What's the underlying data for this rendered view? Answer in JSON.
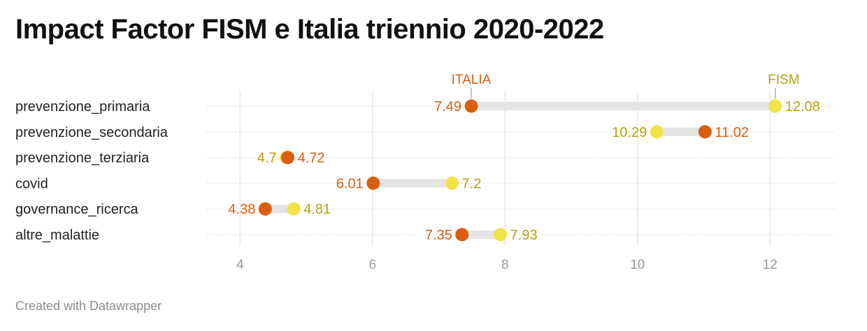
{
  "title": "Impact Factor FISM e Italia triennio 2020-2022",
  "footer": "Created with Datawrapper",
  "chart_data": {
    "type": "dot-range",
    "xlim": [
      3.5,
      13
    ],
    "xticks": [
      4,
      6,
      8,
      10,
      12
    ],
    "grid": true,
    "series": [
      {
        "name": "ITALIA",
        "color": "#d95f0e"
      },
      {
        "name": "FISM",
        "color": "#f2e247",
        "label_color": "#b3a20a"
      }
    ],
    "rows": [
      {
        "label": "prevenzione_primaria",
        "italia": 7.49,
        "fism": 12.08,
        "italia_label": "7.49",
        "fism_label": "12.08"
      },
      {
        "label": "prevenzione_secondaria",
        "italia": 11.02,
        "fism": 10.29,
        "italia_label": "11.02",
        "fism_label": "10.29"
      },
      {
        "label": "prevenzione_terziaria",
        "italia": 4.72,
        "fism": 4.7,
        "italia_label": "4.72",
        "fism_label": "4.7"
      },
      {
        "label": "covid",
        "italia": 6.01,
        "fism": 7.2,
        "italia_label": "6.01",
        "fism_label": "7.2"
      },
      {
        "label": "governance_ricerca",
        "italia": 4.38,
        "fism": 4.81,
        "italia_label": "4.38",
        "fism_label": "4.81"
      },
      {
        "label": "altre_malattie",
        "italia": 7.35,
        "fism": 7.93,
        "italia_label": "7.35",
        "fism_label": "7.93"
      }
    ]
  }
}
